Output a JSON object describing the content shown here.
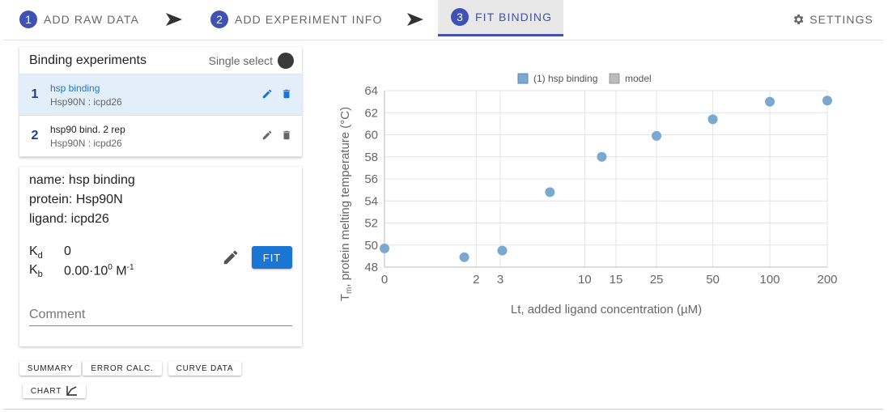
{
  "steps": [
    {
      "num": "1",
      "label": "ADD RAW DATA"
    },
    {
      "num": "2",
      "label": "ADD EXPERIMENT INFO"
    },
    {
      "num": "3",
      "label": "FIT BINDING"
    }
  ],
  "settings_label": "SETTINGS",
  "experiments": {
    "title": "Binding experiments",
    "single_select_label": "Single select",
    "items": [
      {
        "num": "1",
        "name": "hsp binding",
        "sub": "Hsp90N : icpd26"
      },
      {
        "num": "2",
        "name": "hsp90 bind. 2 rep",
        "sub": "Hsp90N : icpd26"
      }
    ]
  },
  "detail": {
    "name_line": "name: hsp binding",
    "protein_line": "protein: Hsp90N",
    "ligand_line": "ligand: icpd26",
    "kd_label": "K",
    "kd_sub": "d",
    "kd_value": "0",
    "kb_label": "K",
    "kb_sub": "b",
    "kb_value_a": "0.00·10",
    "kb_exp": "0",
    "kb_unit": "M",
    "kb_unit_exp": "-1",
    "fit_label": "FIT",
    "comment_placeholder": "Comment"
  },
  "bottom_buttons": {
    "summary": "SUMMARY",
    "error_calc": "ERROR CALC.",
    "curve_data": "CURVE DATA",
    "chart": "CHART"
  },
  "colors": {
    "accent": "#3f51b5",
    "fit": "#1976d2",
    "point": "#7aa8cf"
  },
  "chart_data": {
    "type": "scatter",
    "legend": [
      "(1) hsp binding",
      "model"
    ],
    "legend_placement": "top-center",
    "xlabel": "Lt, added ligand concentration (µM)",
    "ylabel_main": "T",
    "ylabel_sub": "m",
    "ylabel_rest": ", protein melting temperature (°C)",
    "x_scale": "log-like (tick positions non-linear)",
    "x_ticks": [
      "0",
      "2",
      "3",
      "10",
      "15",
      "25",
      "50",
      "100",
      "200"
    ],
    "y_ticks": [
      "48",
      "50",
      "52",
      "54",
      "56",
      "58",
      "60",
      "62",
      "64"
    ],
    "ylim": [
      48,
      64
    ],
    "grid": true,
    "series": [
      {
        "name": "(1) hsp binding",
        "x": [
          0,
          1.6,
          3.1,
          6.25,
          12.5,
          25,
          50,
          100,
          200
        ],
        "y": [
          49.7,
          48.9,
          49.5,
          54.8,
          58.0,
          59.9,
          61.4,
          63.0,
          63.1
        ]
      }
    ]
  }
}
